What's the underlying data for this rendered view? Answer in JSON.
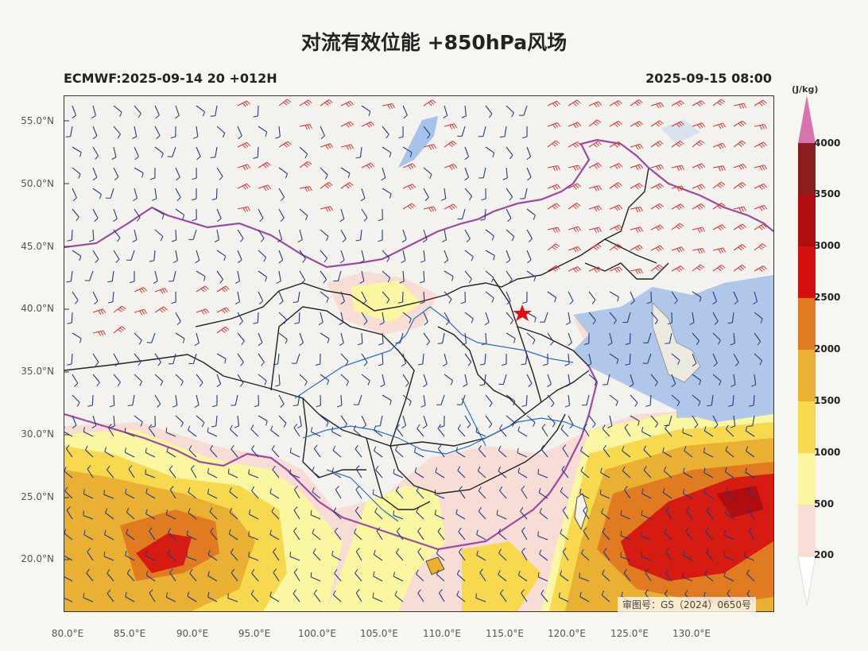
{
  "title": "对流有效位能 +850hPa风场",
  "model_run": "ECMWF:2025-09-14 20 +012H",
  "valid_time": "2025-09-15 08:00",
  "approval_number": "审图号：GS（2024）0650号",
  "axes": {
    "lat_labels": [
      "55.0°N",
      "50.0°N",
      "45.0°N",
      "40.0°N",
      "35.0°N",
      "30.0°N",
      "25.0°N",
      "20.0°N"
    ],
    "lon_labels": [
      "80.0°E",
      "85.0°E",
      "90.0°E",
      "95.0°E",
      "100.0°E",
      "105.0°E",
      "110.0°E",
      "115.0°E",
      "120.0°E",
      "125.0°E",
      "130.0°E"
    ]
  },
  "colorbar": {
    "unit": "(J/kg)",
    "levels": [
      "200",
      "500",
      "1000",
      "1500",
      "2000",
      "2500",
      "3000",
      "3500",
      "4000"
    ],
    "colors": [
      "#f8ddd7",
      "#fbf6a2",
      "#f7d84f",
      "#eab033",
      "#e07b22",
      "#d41111",
      "#b00d10",
      "#8a1e1e",
      "#d774ae"
    ]
  },
  "marker": {
    "name": "Beijing",
    "symbol": "star",
    "color": "#e11010"
  }
}
